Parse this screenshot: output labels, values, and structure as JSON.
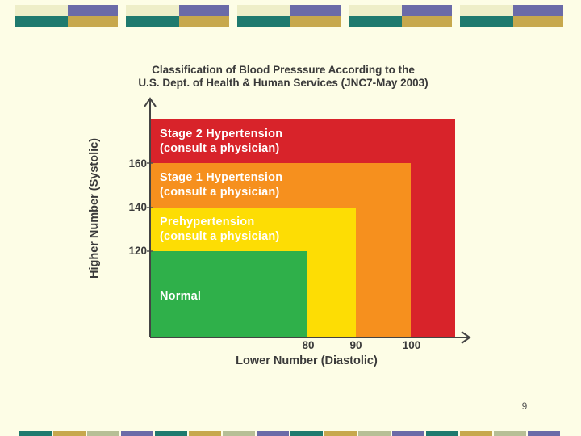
{
  "slide": {
    "page_number": "9",
    "band_colors": {
      "cream": "#eeeec8",
      "slate": "#6b6ba8",
      "teal": "#1f7a6e",
      "gold": "#c7a84d",
      "sage": "#b7bf96"
    }
  },
  "chart_data": {
    "type": "heatmap",
    "title": "Classification of Blood Presssure According to the U.S. Dept. of Health & Human Services (JNC7-May 2003)",
    "title_lines": [
      "Classification of Blood Presssure According to the",
      "U.S. Dept. of Health & Human Services (JNC7-May 2003)"
    ],
    "xlabel": "Lower Number (Diastolic)",
    "ylabel": "Higher Number (Systolic)",
    "x_ticks": [
      "80",
      "90",
      "100"
    ],
    "y_ticks": [
      "120",
      "140",
      "160"
    ],
    "zones": [
      {
        "name": "Stage 2 Hypertension",
        "note": "(consult a physician)",
        "diastolic_max": null,
        "systolic_max": null,
        "color": "#d8232a"
      },
      {
        "name": "Stage 1 Hypertension",
        "note": "(consult a physician)",
        "diastolic_max": 100,
        "systolic_max": 160,
        "color": "#f6901e"
      },
      {
        "name": "Prehypertension",
        "note": "(consult a physician)",
        "diastolic_max": 90,
        "systolic_max": 140,
        "color": "#fddd04"
      },
      {
        "name": "Normal",
        "note": "",
        "diastolic_max": 80,
        "systolic_max": 120,
        "color": "#2fb04a"
      }
    ]
  }
}
